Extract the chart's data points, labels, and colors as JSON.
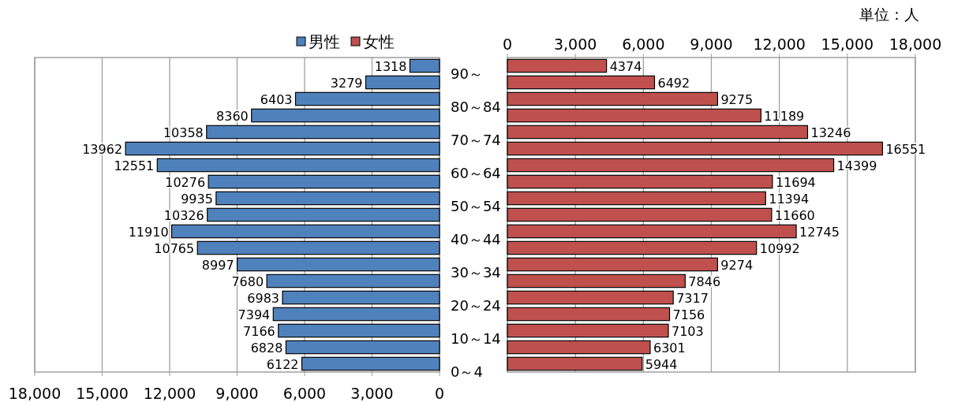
{
  "chart_data": [
    {
      "type": "bar",
      "orientation": "horizontal",
      "legend": "top",
      "grid": "x",
      "data_labels": true,
      "categories": [
        "90～",
        null,
        "80～84",
        null,
        "70～74",
        null,
        "60～64",
        null,
        "50～54",
        null,
        "40～44",
        null,
        "30～34",
        null,
        "20～24",
        null,
        "10～14",
        null,
        "0～4"
      ],
      "xlim": [
        18000,
        0
      ],
      "xticks": [
        {
          "value": 18000,
          "label": "18,000"
        },
        {
          "value": 15000,
          "label": "15,000"
        },
        {
          "value": 12000,
          "label": "12,000"
        },
        {
          "value": 9000,
          "label": "9,000"
        },
        {
          "value": 6000,
          "label": "6,000"
        },
        {
          "value": 3000,
          "label": "3,000"
        },
        0
      ],
      "series": [
        {
          "name": "男性",
          "color": "#4f81bd",
          "values": [
            1318,
            3279,
            6403,
            8360,
            10358,
            13962,
            12551,
            10276,
            9935,
            10326,
            11910,
            10765,
            8997,
            7680,
            6983,
            7394,
            7166,
            6828,
            6122
          ]
        }
      ]
    },
    {
      "type": "bar",
      "orientation": "horizontal",
      "legend": "top",
      "grid": "x",
      "data_labels": true,
      "tick_labels": "x",
      "annotations": [
        "単位：人"
      ],
      "categories": [
        null,
        null,
        null,
        null,
        null,
        null,
        null,
        null,
        null,
        null,
        null,
        null,
        null,
        null,
        null,
        null,
        null,
        null,
        null
      ],
      "xlim": [
        0,
        18000
      ],
      "xticks": [
        0,
        {
          "value": 3000,
          "label": "3,000"
        },
        {
          "value": 6000,
          "label": "6,000"
        },
        {
          "value": 9000,
          "label": "9,000"
        },
        {
          "value": 12000,
          "label": "12,000"
        },
        {
          "value": 15000,
          "label": "15,000"
        },
        {
          "value": 18000,
          "label": "18,000"
        }
      ],
      "series": [
        {
          "name": "女性",
          "color": "#c0504d",
          "values": [
            4374,
            6492,
            9275,
            11189,
            13246,
            16551,
            14399,
            11694,
            11394,
            11660,
            12745,
            10992,
            9274,
            7846,
            7317,
            7156,
            7103,
            6301,
            5944
          ]
        }
      ]
    }
  ]
}
